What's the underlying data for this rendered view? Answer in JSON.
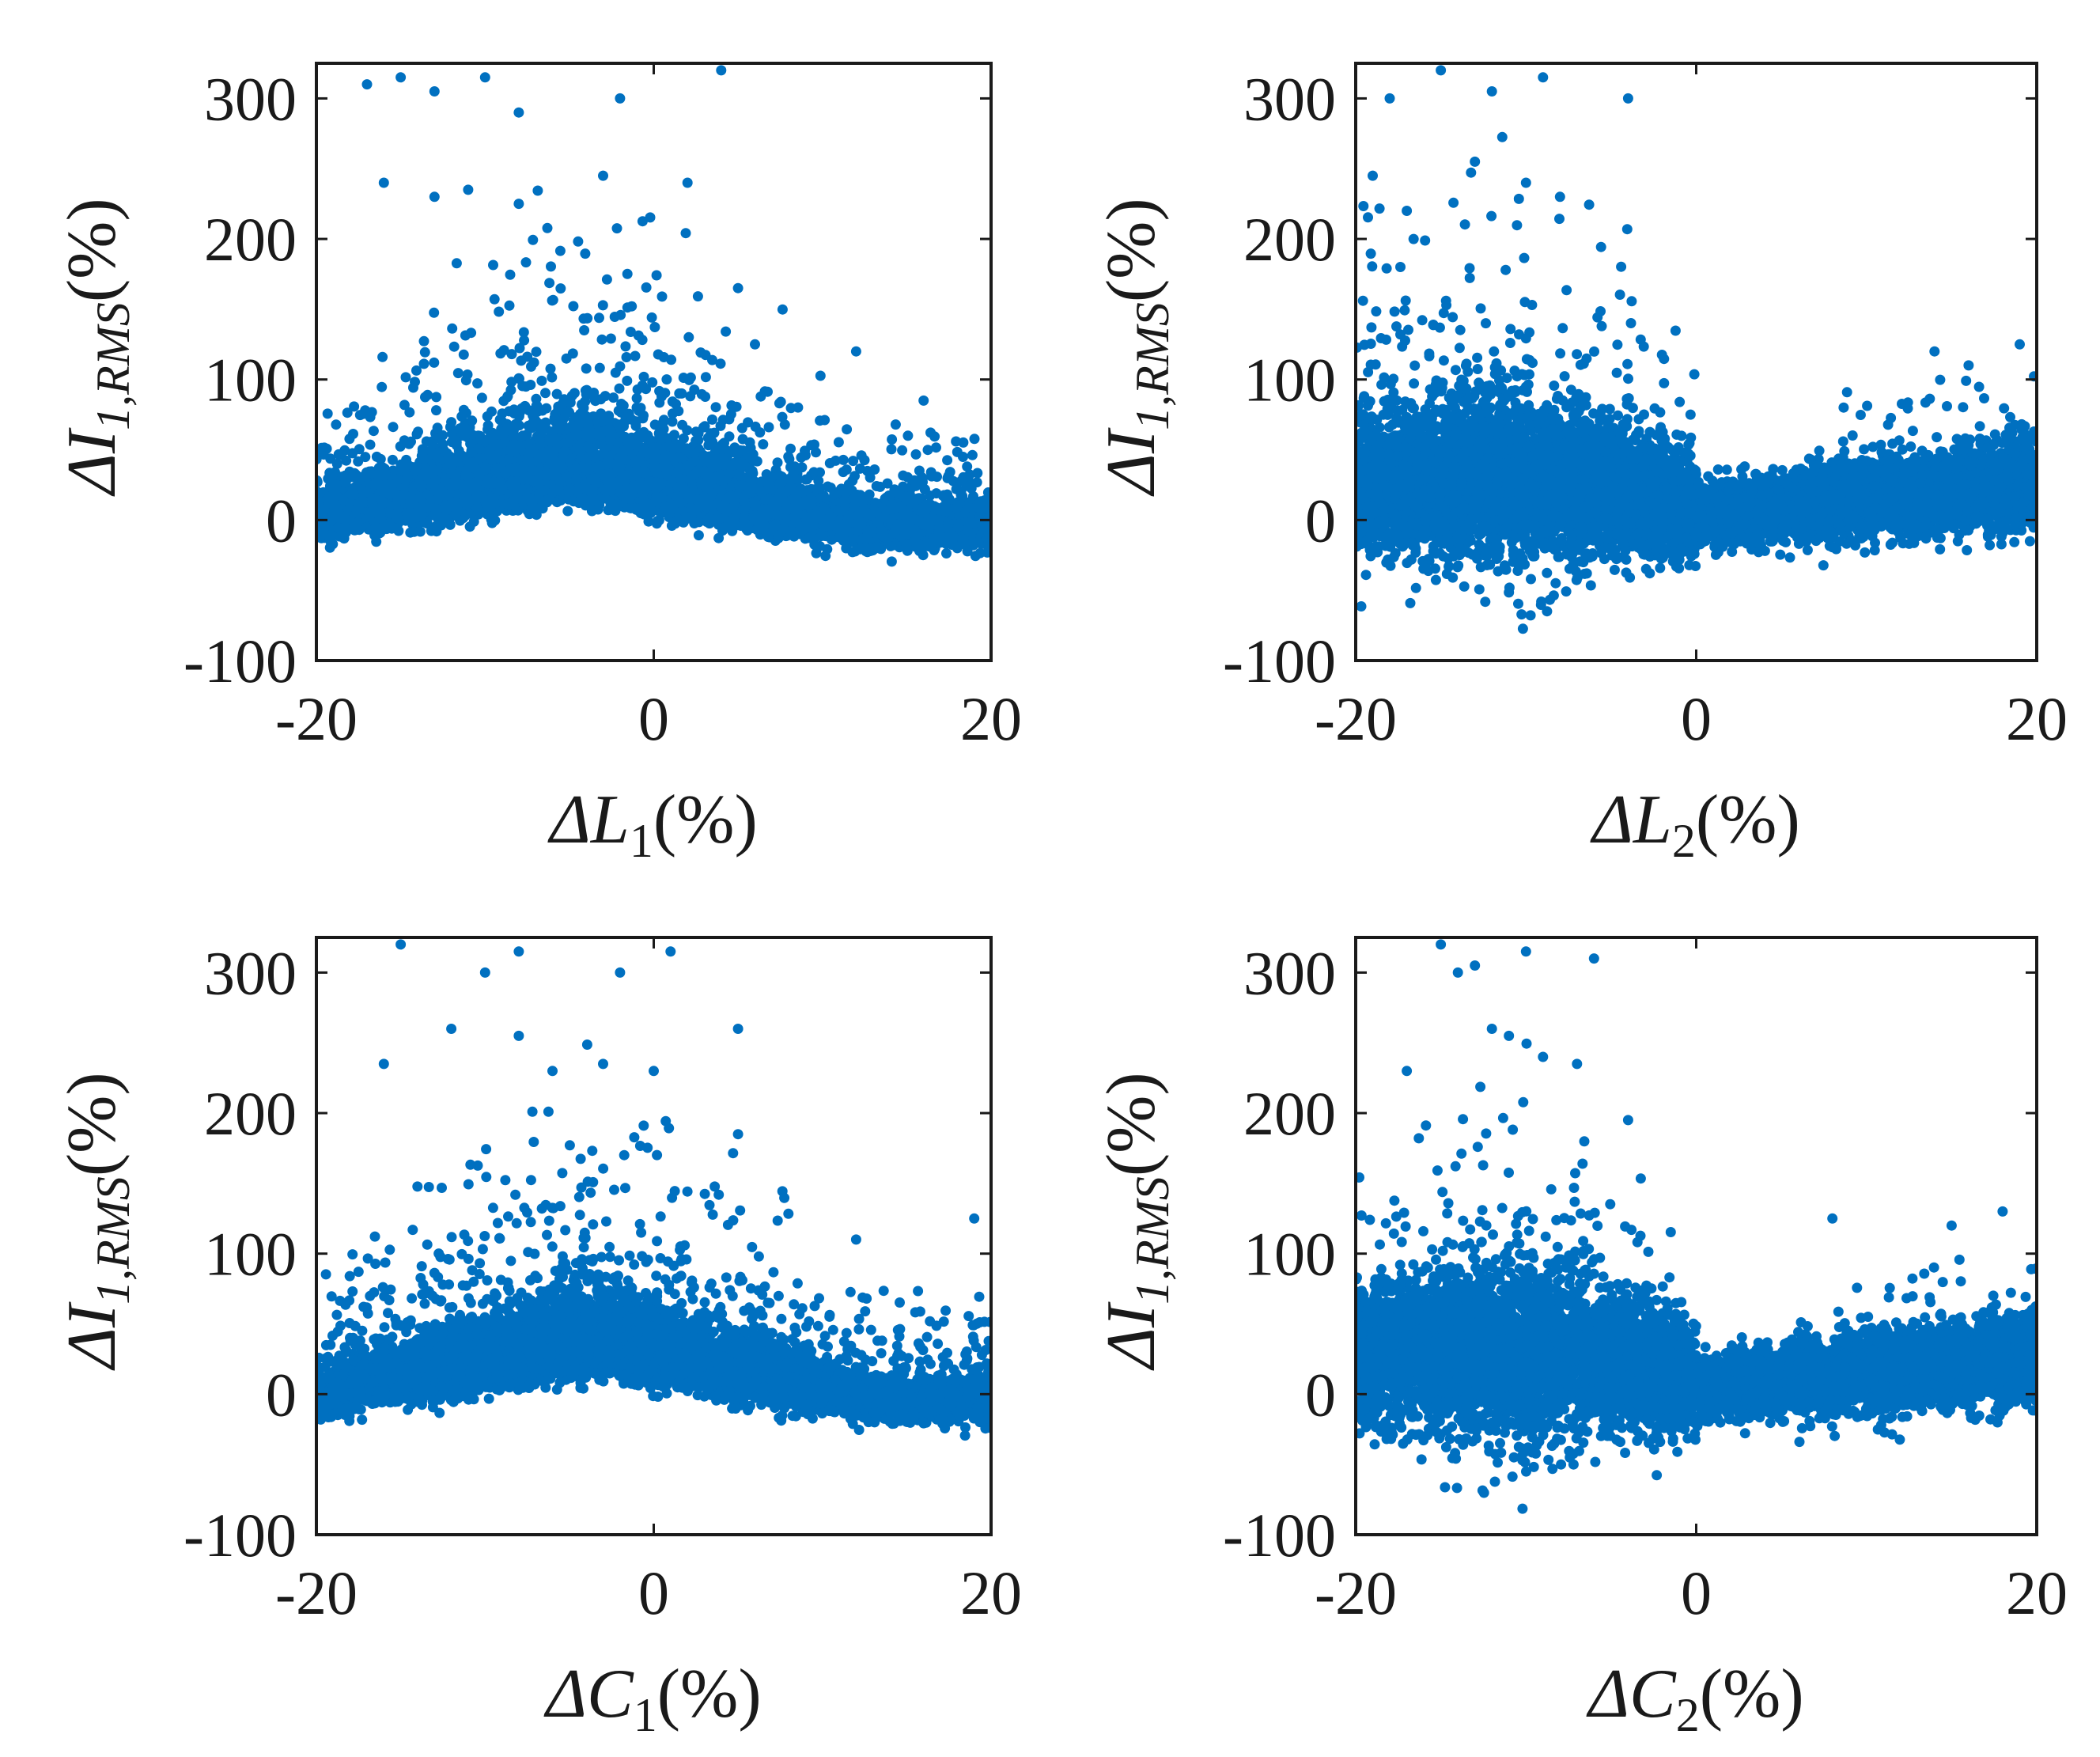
{
  "figure": {
    "description_title": "Scatter plots of ΔI_1,RMS versus component deviations",
    "point_color": "#0070C0",
    "axis_color": "#1a1a1a"
  },
  "chart_data": [
    {
      "type": "scatter",
      "id": "L1",
      "xlabel": "ΔL1(%)",
      "xlabel_main": "ΔL",
      "xlabel_sub": "1",
      "xlabel_tail": "(%)",
      "ylabel": "ΔI1,RMS(%)",
      "ylabel_main": "ΔI",
      "ylabel_sub": "1,RMS",
      "ylabel_tail": "(%)",
      "xlim": [
        -20,
        20
      ],
      "ylim": [
        -100,
        325
      ],
      "xticks": [
        -20,
        0,
        20
      ],
      "xtick_labels": [
        "-20",
        "0",
        "20"
      ],
      "yticks": [
        -100,
        0,
        100,
        200,
        300
      ],
      "ytick_labels": [
        "-100",
        "0",
        "100",
        "200",
        "300"
      ],
      "shape": "hump",
      "peak_x": -5,
      "n_points": 9000,
      "outliers": [
        [
          -17,
          310
        ],
        [
          -15,
          315
        ],
        [
          -13,
          305
        ],
        [
          -10,
          315
        ],
        [
          -8,
          290
        ],
        [
          -2,
          300
        ],
        [
          4,
          320
        ],
        [
          -13,
          230
        ],
        [
          -8,
          225
        ],
        [
          -3,
          245
        ],
        [
          2,
          240
        ],
        [
          5,
          165
        ],
        [
          -11,
          235
        ],
        [
          -16,
          240
        ],
        [
          6,
          125
        ],
        [
          12,
          120
        ],
        [
          16,
          85
        ]
      ]
    },
    {
      "type": "scatter",
      "id": "L2",
      "xlabel": "ΔL2(%)",
      "xlabel_main": "ΔL",
      "xlabel_sub": "2",
      "xlabel_tail": "(%)",
      "ylabel": "ΔI1,RMS(%)",
      "ylabel_main": "ΔI",
      "ylabel_sub": "1,RMS",
      "ylabel_tail": "(%)",
      "xlim": [
        -20,
        20
      ],
      "ylim": [
        -100,
        325
      ],
      "xticks": [
        -20,
        0,
        20
      ],
      "xtick_labels": [
        "-20",
        "0",
        "20"
      ],
      "yticks": [
        -100,
        0,
        100,
        200,
        300
      ],
      "ytick_labels": [
        "-100",
        "0",
        "100",
        "200",
        "300"
      ],
      "shape": "valley",
      "peak_x": -12,
      "n_points": 9000,
      "outliers": [
        [
          -18,
          300
        ],
        [
          -15,
          320
        ],
        [
          -12,
          305
        ],
        [
          -9,
          315
        ],
        [
          -4,
          300
        ],
        [
          -13,
          255
        ],
        [
          -10,
          240
        ],
        [
          -8,
          230
        ],
        [
          -19,
          245
        ],
        [
          -17,
          220
        ],
        [
          14,
          120
        ],
        [
          19,
          125
        ],
        [
          16,
          110
        ]
      ]
    },
    {
      "type": "scatter",
      "id": "C1",
      "xlabel": "ΔC1(%)",
      "xlabel_main": "ΔC",
      "xlabel_sub": "1",
      "xlabel_tail": "(%)",
      "ylabel": "ΔI1,RMS(%)",
      "ylabel_main": "ΔI",
      "ylabel_sub": "1,RMS",
      "ylabel_tail": "(%)",
      "xlim": [
        -20,
        20
      ],
      "ylim": [
        -100,
        325
      ],
      "xticks": [
        -20,
        0,
        20
      ],
      "xtick_labels": [
        "-20",
        "0",
        "20"
      ],
      "yticks": [
        -100,
        0,
        100,
        200,
        300
      ],
      "ytick_labels": [
        "-100",
        "0",
        "100",
        "200",
        "300"
      ],
      "shape": "hump",
      "peak_x": -4,
      "n_points": 9000,
      "outliers": [
        [
          -15,
          320
        ],
        [
          -10,
          300
        ],
        [
          -8,
          315
        ],
        [
          -2,
          300
        ],
        [
          1,
          315
        ],
        [
          -12,
          260
        ],
        [
          -8,
          255
        ],
        [
          -3,
          235
        ],
        [
          5,
          260
        ],
        [
          -6,
          230
        ],
        [
          0,
          230
        ],
        [
          -16,
          235
        ],
        [
          5,
          185
        ],
        [
          19,
          125
        ],
        [
          12,
          110
        ]
      ]
    },
    {
      "type": "scatter",
      "id": "C2",
      "xlabel": "ΔC2(%)",
      "xlabel_main": "ΔC",
      "xlabel_sub": "2",
      "xlabel_tail": "(%)",
      "ylabel": "ΔI1,RMS(%)",
      "ylabel_main": "ΔI",
      "ylabel_sub": "1,RMS",
      "ylabel_tail": "(%)",
      "xlim": [
        -20,
        20
      ],
      "ylim": [
        -100,
        325
      ],
      "xticks": [
        -20,
        0,
        20
      ],
      "xtick_labels": [
        "-20",
        "0",
        "20"
      ],
      "yticks": [
        -100,
        0,
        100,
        200,
        300
      ],
      "ytick_labels": [
        "-100",
        "0",
        "100",
        "200",
        "300"
      ],
      "shape": "valley",
      "peak_x": -11,
      "n_points": 9000,
      "outliers": [
        [
          -15,
          320
        ],
        [
          -14,
          300
        ],
        [
          -13,
          305
        ],
        [
          -10,
          315
        ],
        [
          -6,
          310
        ],
        [
          -12,
          260
        ],
        [
          -11,
          255
        ],
        [
          -9,
          240
        ],
        [
          -7,
          235
        ],
        [
          -17,
          230
        ],
        [
          -4,
          195
        ],
        [
          8,
          125
        ],
        [
          15,
          120
        ],
        [
          18,
          130
        ]
      ]
    }
  ]
}
